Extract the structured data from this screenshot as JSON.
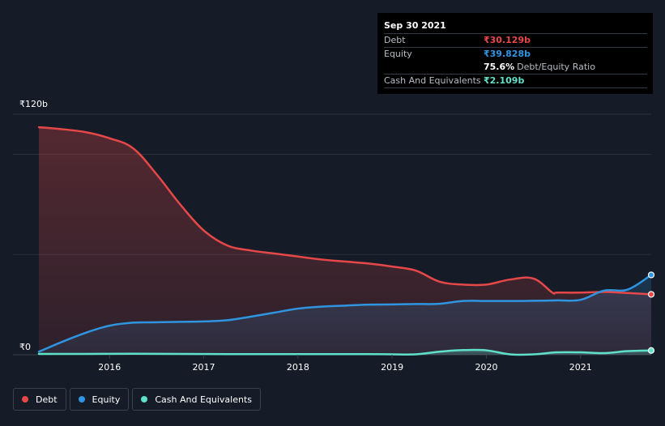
{
  "tooltip": {
    "date": "Sep 30 2021",
    "debt_label": "Debt",
    "debt_value": "₹30.129b",
    "equity_label": "Equity",
    "equity_value": "₹39.828b",
    "ratio_value": "75.6%",
    "ratio_label": "Debt/Equity Ratio",
    "cash_label": "Cash And Equivalents",
    "cash_value": "₹2.109b"
  },
  "legend": {
    "debt": "Debt",
    "equity": "Equity",
    "cash": "Cash And Equivalents"
  },
  "colors": {
    "background": "#151b27",
    "debt": "#e64848",
    "equity": "#2f95e0",
    "cash": "#5fe0c8",
    "grid": "#2a303c"
  },
  "chart_data": {
    "type": "area",
    "ylabel_top": "₹120b",
    "ylabel_bottom": "₹0",
    "ylim": [
      0,
      120
    ],
    "xlim": [
      2015.25,
      2021.75
    ],
    "x_ticks": [
      {
        "x": 2016,
        "label": "2016"
      },
      {
        "x": 2017,
        "label": "2017"
      },
      {
        "x": 2018,
        "label": "2018"
      },
      {
        "x": 2019,
        "label": "2019"
      },
      {
        "x": 2020,
        "label": "2020"
      },
      {
        "x": 2021,
        "label": "2021"
      }
    ],
    "gridlines_y": [
      100,
      50
    ],
    "series": [
      {
        "name": "Debt",
        "color": "#e64848",
        "fill": true,
        "points": [
          [
            2015.25,
            113.5
          ],
          [
            2015.5,
            112.5
          ],
          [
            2015.75,
            111.0
          ],
          [
            2016.0,
            108.0
          ],
          [
            2016.25,
            103.0
          ],
          [
            2016.5,
            90.0
          ],
          [
            2016.75,
            75.0
          ],
          [
            2017.0,
            62.0
          ],
          [
            2017.25,
            54.5
          ],
          [
            2017.5,
            52.0
          ],
          [
            2017.75,
            50.5
          ],
          [
            2018.0,
            49.0
          ],
          [
            2018.25,
            47.5
          ],
          [
            2018.5,
            46.5
          ],
          [
            2018.75,
            45.5
          ],
          [
            2019.0,
            44.0
          ],
          [
            2019.25,
            42.0
          ],
          [
            2019.5,
            36.5
          ],
          [
            2019.75,
            35.0
          ],
          [
            2020.0,
            35.0
          ],
          [
            2020.25,
            37.5
          ],
          [
            2020.5,
            38.0
          ],
          [
            2020.7,
            31.0
          ],
          [
            2020.75,
            31.0
          ],
          [
            2021.0,
            31.0
          ],
          [
            2021.25,
            31.3
          ],
          [
            2021.5,
            30.8
          ],
          [
            2021.75,
            30.129
          ]
        ]
      },
      {
        "name": "Equity",
        "color": "#2f95e0",
        "fill": true,
        "points": [
          [
            2015.25,
            1.5
          ],
          [
            2015.5,
            6.5
          ],
          [
            2015.75,
            11.0
          ],
          [
            2016.0,
            14.5
          ],
          [
            2016.25,
            16.0
          ],
          [
            2016.5,
            16.2
          ],
          [
            2016.75,
            16.4
          ],
          [
            2017.0,
            16.6
          ],
          [
            2017.25,
            17.2
          ],
          [
            2017.5,
            19.0
          ],
          [
            2017.75,
            21.0
          ],
          [
            2018.0,
            23.0
          ],
          [
            2018.25,
            24.0
          ],
          [
            2018.5,
            24.5
          ],
          [
            2018.75,
            25.0
          ],
          [
            2019.0,
            25.1
          ],
          [
            2019.25,
            25.3
          ],
          [
            2019.5,
            25.4
          ],
          [
            2019.75,
            26.8
          ],
          [
            2020.0,
            26.8
          ],
          [
            2020.25,
            26.8
          ],
          [
            2020.5,
            26.9
          ],
          [
            2020.75,
            27.1
          ],
          [
            2021.0,
            27.4
          ],
          [
            2021.25,
            32.0
          ],
          [
            2021.5,
            32.5
          ],
          [
            2021.75,
            39.828
          ]
        ]
      },
      {
        "name": "Cash And Equivalents",
        "color": "#5fe0c8",
        "fill": true,
        "points": [
          [
            2015.25,
            0.4
          ],
          [
            2015.75,
            0.4
          ],
          [
            2016.25,
            0.5
          ],
          [
            2016.75,
            0.4
          ],
          [
            2017.25,
            0.3
          ],
          [
            2017.75,
            0.3
          ],
          [
            2018.25,
            0.3
          ],
          [
            2018.75,
            0.3
          ],
          [
            2019.0,
            0.2
          ],
          [
            2019.25,
            0.2
          ],
          [
            2019.5,
            1.5
          ],
          [
            2019.75,
            2.3
          ],
          [
            2020.0,
            2.2
          ],
          [
            2020.25,
            0.2
          ],
          [
            2020.5,
            0.2
          ],
          [
            2020.75,
            1.2
          ],
          [
            2021.0,
            1.2
          ],
          [
            2021.25,
            0.8
          ],
          [
            2021.5,
            1.8
          ],
          [
            2021.75,
            2.109
          ]
        ]
      }
    ]
  }
}
